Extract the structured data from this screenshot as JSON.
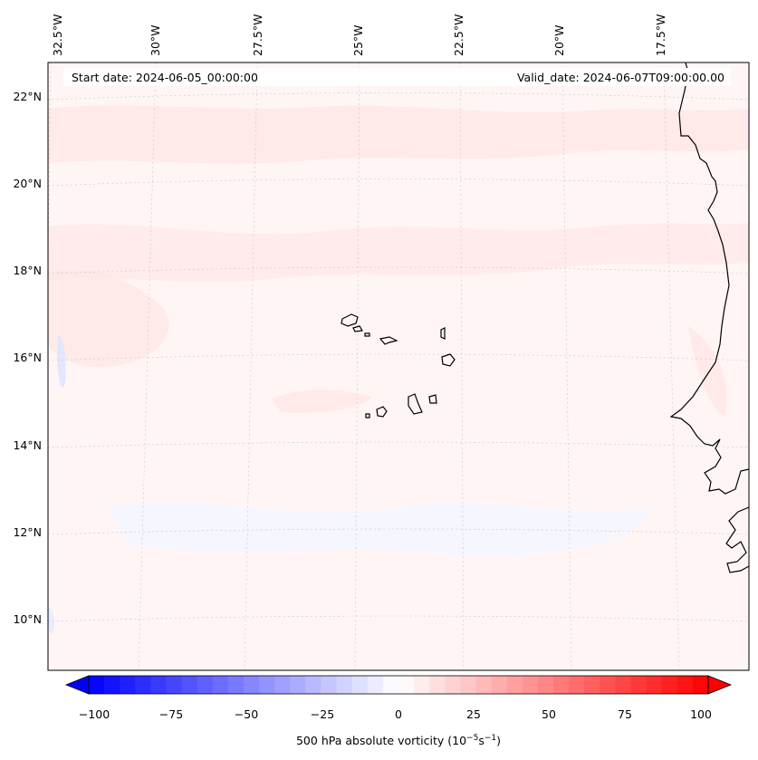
{
  "map": {
    "start_date_label": "Start date: 2024-06-05_00:00:00",
    "valid_date_label": "Valid_date: 2024-06-07T09:00:00.00",
    "lon_labels": [
      "32.5°W",
      "30°W",
      "27.5°W",
      "25°W",
      "22.5°W",
      "20°W",
      "17.5°W"
    ],
    "lat_labels": [
      "22°N",
      "20°N",
      "18°N",
      "16°N",
      "14°N",
      "12°N",
      "10°N"
    ],
    "colorbar": {
      "label_main": "500 hPa absolute vorticity (10",
      "label_exp1": "−5",
      "label_mid": "s",
      "label_exp2": "−1",
      "label_end": ")",
      "ticks": [
        "−100",
        "−75",
        "−50",
        "−25",
        "0",
        "25",
        "50",
        "75",
        "100"
      ],
      "min": -100,
      "max": 100,
      "colormap": "bwr",
      "low_color": "#0000ff",
      "mid_color": "#ffffff",
      "high_color": "#ff0000"
    }
  }
}
